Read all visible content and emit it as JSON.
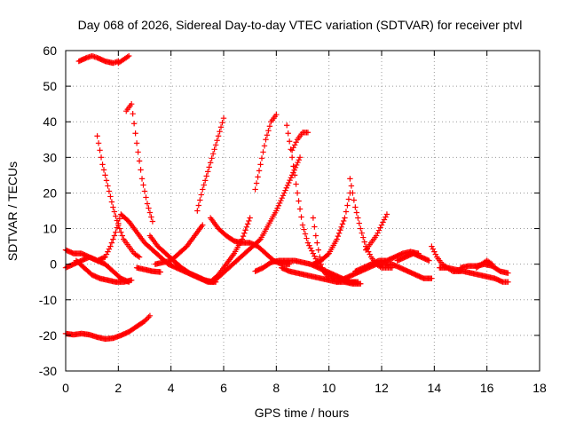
{
  "chart_data": {
    "type": "scatter",
    "title": "Day 068 of 2026, Sidereal Day-to-day VTEC variation (SDTVAR) for receiver ptvl",
    "xlabel": "GPS time / hours",
    "ylabel": "SDTVAR / TECUs",
    "xlim": [
      0,
      18
    ],
    "ylim": [
      -30,
      60
    ],
    "xticks": [
      0,
      2,
      4,
      6,
      8,
      10,
      12,
      14,
      16,
      18
    ],
    "yticks": [
      -30,
      -20,
      -10,
      0,
      10,
      20,
      30,
      40,
      50,
      60
    ],
    "grid": true,
    "marker": "+",
    "color": "#ff0000",
    "series": [
      {
        "name": "s1",
        "x": [
          0.5,
          0.8,
          1.0,
          1.2,
          1.5,
          1.8,
          2.0
        ],
        "y": [
          57,
          58,
          58.5,
          58,
          57,
          56.5,
          57
        ]
      },
      {
        "name": "s2",
        "x": [
          2.0,
          2.2,
          2.4
        ],
        "y": [
          56.5,
          57.5,
          58.5
        ]
      },
      {
        "name": "s3",
        "x": [
          0.0,
          0.3,
          0.6,
          0.9,
          1.2,
          1.5,
          1.8,
          2.1,
          2.4,
          2.7,
          3.0,
          3.2
        ],
        "y": [
          -19.5,
          -19.8,
          -19.5,
          -19.8,
          -20.5,
          -21,
          -20.8,
          -20,
          -19,
          -17.5,
          -16,
          -14.5
        ]
      },
      {
        "name": "s4",
        "x": [
          1.2,
          1.4,
          1.6,
          1.8,
          2.0,
          2.2,
          2.4,
          2.6,
          2.8
        ],
        "y": [
          36,
          28,
          22,
          16,
          11,
          7,
          5,
          3,
          2
        ]
      },
      {
        "name": "s5",
        "x": [
          2.3,
          2.5,
          2.7,
          2.9,
          3.1,
          3.3
        ],
        "y": [
          43,
          45,
          34,
          24,
          17,
          12
        ]
      },
      {
        "name": "s6",
        "x": [
          0.0,
          0.3,
          0.6,
          0.9,
          1.2,
          1.5,
          1.7,
          1.9,
          2.1,
          2.4,
          2.7,
          3.0,
          3.3,
          3.6,
          3.9,
          4.2,
          4.5,
          4.8,
          5.1,
          5.4,
          5.7
        ],
        "y": [
          4,
          3,
          3,
          2,
          1,
          2,
          5,
          9,
          14,
          12,
          9,
          6,
          4,
          2,
          0,
          -1,
          -2,
          -3,
          -4,
          -5,
          -5
        ]
      },
      {
        "name": "s7",
        "x": [
          0.0,
          0.3,
          0.6,
          0.9,
          1.2,
          1.5,
          1.8,
          2.1,
          2.4
        ],
        "y": [
          -1,
          0,
          1,
          2,
          1,
          0,
          -2,
          -4,
          -5
        ]
      },
      {
        "name": "s8",
        "x": [
          0.4,
          0.7,
          1.0,
          1.3,
          1.6,
          1.9,
          2.2,
          2.5
        ],
        "y": [
          1,
          -1,
          -3,
          -4,
          -4.5,
          -5,
          -5,
          -4.5
        ]
      },
      {
        "name": "s9",
        "x": [
          3.2,
          3.5,
          3.8,
          4.1,
          4.4,
          4.7,
          5.0,
          5.3,
          5.6
        ],
        "y": [
          8,
          5,
          3,
          1,
          -1,
          -2.5,
          -3.5,
          -4.5,
          -5
        ]
      },
      {
        "name": "s10",
        "x": [
          2.7,
          3.0,
          3.3,
          3.6
        ],
        "y": [
          -1,
          -1.5,
          -2,
          -2.2
        ]
      },
      {
        "name": "s11",
        "x": [
          3.4,
          3.7,
          4.0,
          4.3,
          4.6,
          4.9,
          5.2
        ],
        "y": [
          0,
          0.5,
          1,
          3,
          5,
          8,
          11
        ]
      },
      {
        "name": "s12",
        "x": [
          5.0,
          5.2,
          5.4,
          5.6,
          5.8,
          6.0
        ],
        "y": [
          15,
          21,
          26,
          31,
          36,
          41
        ]
      },
      {
        "name": "s13",
        "x": [
          5.5,
          5.8,
          6.1,
          6.4,
          6.7,
          7.0,
          7.3,
          7.6,
          7.9,
          8.2,
          8.5
        ],
        "y": [
          13,
          10,
          8,
          6.5,
          6,
          6,
          5,
          3,
          1,
          0,
          0
        ]
      },
      {
        "name": "s14",
        "x": [
          5.5,
          5.8,
          6.1,
          6.4,
          6.7,
          7.0
        ],
        "y": [
          -5,
          -3,
          0,
          3,
          7,
          13
        ]
      },
      {
        "name": "s15",
        "x": [
          5.6,
          5.9,
          6.2,
          6.5,
          6.8,
          7.1,
          7.4,
          7.7,
          8.0,
          8.3,
          8.6,
          8.9
        ],
        "y": [
          -5,
          -3,
          -1,
          1,
          3,
          5,
          7,
          11,
          15,
          20,
          25,
          30
        ]
      },
      {
        "name": "s16",
        "x": [
          7.2,
          7.4,
          7.6,
          7.8,
          8.0
        ],
        "y": [
          21,
          28,
          35,
          40,
          42
        ]
      },
      {
        "name": "s17",
        "x": [
          8.4,
          8.6,
          8.8,
          9.0,
          9.2,
          9.4,
          9.6,
          9.8,
          10.0,
          10.2,
          10.4,
          10.7,
          11.0
        ],
        "y": [
          39,
          30,
          20,
          11,
          6,
          3,
          0,
          -2,
          -3,
          -4,
          -4,
          -5,
          -5
        ]
      },
      {
        "name": "s18",
        "x": [
          8.6,
          8.8,
          9.0,
          9.2
        ],
        "y": [
          32,
          35,
          37,
          37
        ]
      },
      {
        "name": "s19",
        "x": [
          7.2,
          7.5,
          7.8,
          8.1,
          8.4,
          8.7,
          9.0,
          9.3,
          9.6,
          9.9,
          10.2,
          10.5,
          10.8,
          11.1
        ],
        "y": [
          -2,
          -1,
          0.5,
          1,
          1,
          1,
          0.5,
          0,
          -1,
          -2,
          -3,
          -4,
          -5,
          -5
        ]
      },
      {
        "name": "s20",
        "x": [
          8.2,
          8.5,
          8.8,
          9.1,
          9.4,
          9.7,
          10.0,
          10.3,
          10.6,
          10.9,
          11.2
        ],
        "y": [
          -1,
          -2,
          -2.5,
          -3,
          -3.5,
          -4,
          -4.5,
          -5,
          -5,
          -5.5,
          -5.5
        ]
      },
      {
        "name": "s21",
        "x": [
          9.4,
          9.5,
          9.6,
          9.7,
          9.8,
          9.9,
          10.0
        ],
        "y": [
          13,
          8,
          4,
          0,
          -2,
          -3,
          -4
        ]
      },
      {
        "name": "s22",
        "x": [
          9.4,
          9.7,
          10.0,
          10.3,
          10.6,
          10.8
        ],
        "y": [
          0,
          1,
          3,
          7,
          13,
          20
        ]
      },
      {
        "name": "s23",
        "x": [
          10.8,
          11.0,
          11.2,
          11.4,
          11.6,
          11.8,
          12.0,
          12.2,
          12.4
        ],
        "y": [
          24,
          16,
          10,
          5,
          2,
          0,
          -1,
          -1,
          -1
        ]
      },
      {
        "name": "s24",
        "x": [
          11.4,
          11.6,
          11.8,
          12.0,
          12.2
        ],
        "y": [
          4,
          6,
          8,
          11,
          14
        ]
      },
      {
        "name": "s25",
        "x": [
          10.3,
          10.6,
          10.9,
          11.2,
          11.5,
          11.8,
          12.1,
          12.4,
          12.7,
          13.0,
          13.3,
          13.6,
          13.9
        ],
        "y": [
          -5,
          -4,
          -3,
          -2,
          -1,
          0,
          0,
          0,
          -1,
          -2,
          -3,
          -4,
          -4
        ]
      },
      {
        "name": "s26",
        "x": [
          11.0,
          11.3,
          11.6,
          11.9,
          12.2,
          12.5,
          12.8,
          13.1,
          13.4
        ],
        "y": [
          -2,
          -1,
          0,
          1,
          1,
          2,
          3,
          3.5,
          3
        ]
      },
      {
        "name": "s27",
        "x": [
          12.6,
          12.9,
          13.2,
          13.5,
          13.8
        ],
        "y": [
          1,
          2,
          3,
          2,
          1
        ]
      },
      {
        "name": "s28",
        "x": [
          13.9,
          14.1,
          14.3,
          14.5,
          14.7,
          15.0
        ],
        "y": [
          5,
          2,
          0,
          -1,
          -2,
          -2
        ]
      },
      {
        "name": "s29",
        "x": [
          14.2,
          14.5,
          14.8,
          15.1,
          15.4,
          15.7,
          16.0,
          16.3,
          16.6,
          16.8
        ],
        "y": [
          -1,
          -1,
          -1.5,
          -2,
          -2.5,
          -3,
          -3.5,
          -4,
          -5,
          -5
        ]
      },
      {
        "name": "s30",
        "x": [
          15.0,
          15.3,
          15.6,
          15.9,
          16.2,
          16.5,
          16.8
        ],
        "y": [
          -1,
          -0.5,
          -0.5,
          0,
          -0.5,
          -2,
          -2.5
        ]
      },
      {
        "name": "s31",
        "x": [
          15.6,
          15.8,
          16.0,
          16.2
        ],
        "y": [
          -1,
          0,
          1,
          0
        ]
      }
    ]
  }
}
